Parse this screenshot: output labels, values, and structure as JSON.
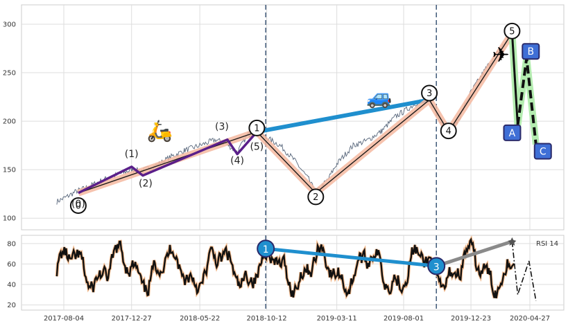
{
  "chart_data": [
    {
      "type": "line",
      "panel": "price",
      "title": "",
      "xlabel": "",
      "ylabel": "",
      "x_ticks": [
        "2017-08-04",
        "2017-12-27",
        "2018-05-22",
        "2018-10-12",
        "2019-03-11",
        "2019-08-01",
        "2019-12-23",
        "2020-04-27"
      ],
      "y_ticks": [
        100,
        150,
        200,
        250,
        300
      ],
      "ylim": [
        88,
        320
      ],
      "grid": true,
      "price_path": [
        [
          "2017-07-20",
          117
        ],
        [
          "2017-08-10",
          122
        ],
        [
          "2017-09-01",
          128
        ],
        [
          "2017-09-25",
          132
        ],
        [
          "2017-10-20",
          138
        ],
        [
          "2017-11-15",
          143
        ],
        [
          "2017-12-10",
          147
        ],
        [
          "2017-12-27",
          150
        ],
        [
          "2018-01-20",
          149
        ],
        [
          "2018-02-20",
          155
        ],
        [
          "2018-03-20",
          163
        ],
        [
          "2018-04-20",
          170
        ],
        [
          "2018-05-22",
          175
        ],
        [
          "2018-06-25",
          181
        ],
        [
          "2018-07-20",
          176
        ],
        [
          "2018-08-10",
          168
        ],
        [
          "2018-09-01",
          186
        ],
        [
          "2018-09-21",
          189
        ],
        [
          "2018-10-12",
          183
        ],
        [
          "2018-11-10",
          175
        ],
        [
          "2018-12-10",
          160
        ],
        [
          "2019-01-10",
          140
        ],
        [
          "2019-01-25",
          126
        ],
        [
          "2019-02-20",
          140
        ],
        [
          "2019-03-11",
          156
        ],
        [
          "2019-04-15",
          175
        ],
        [
          "2019-05-15",
          180
        ],
        [
          "2019-06-15",
          190
        ],
        [
          "2019-07-15",
          205
        ],
        [
          "2019-08-01",
          210
        ],
        [
          "2019-09-01",
          220
        ],
        [
          "2019-09-25",
          222
        ],
        [
          "2019-10-20",
          200
        ],
        [
          "2019-11-05",
          189
        ],
        [
          "2019-11-25",
          200
        ],
        [
          "2019-12-23",
          230
        ],
        [
          "2020-01-25",
          255
        ],
        [
          "2020-02-25",
          275
        ],
        [
          "2020-03-20",
          291
        ]
      ],
      "wave_main": [
        {
          "label": "0",
          "x": "2017-09-04",
          "y": 126,
          "circle_y": 113
        },
        {
          "label": "1",
          "x": "2018-09-21",
          "y": 189,
          "circle_y": 193
        },
        {
          "label": "2",
          "x": "2019-01-25",
          "y": 126,
          "circle_y": 122
        },
        {
          "label": "3",
          "x": "2019-09-25",
          "y": 222,
          "circle_y": 229
        },
        {
          "label": "4",
          "x": "2019-11-05",
          "y": 189,
          "circle_y": 190
        },
        {
          "label": "5",
          "x": "2020-03-20",
          "y": 291,
          "circle_y": 293
        }
      ],
      "wave_sub": [
        {
          "label": "(0)",
          "x": "2017-09-04",
          "y": 126
        },
        {
          "label": "(1)",
          "x": "2017-12-27",
          "y": 153
        },
        {
          "label": "(2)",
          "x": "2018-01-20",
          "y": 144
        },
        {
          "label": "(3)",
          "x": "2018-07-20",
          "y": 181
        },
        {
          "label": "(4)",
          "x": "2018-08-10",
          "y": 166
        },
        {
          "label": "(5)",
          "x": "2018-09-21",
          "y": 189
        }
      ],
      "wave_correction": [
        {
          "label": "A",
          "x": "2020-04-01",
          "y": 196,
          "box_y": 188
        },
        {
          "label": "B",
          "x": "2020-04-20",
          "y": 265,
          "box_y": 272
        },
        {
          "label": "C",
          "x": "2020-05-10",
          "y": 176,
          "box_y": 169
        }
      ],
      "trend_line_blue": [
        [
          "2018-09-21",
          189
        ],
        [
          "2019-09-25",
          222
        ]
      ],
      "vlines": [
        "2018-10-10",
        "2019-10-10"
      ],
      "icons": [
        {
          "name": "scooter-icon",
          "glyph": "🛵",
          "x": "2018-02-25",
          "y": 183
        },
        {
          "name": "car-icon",
          "glyph": "🚙",
          "x": "2019-06-10",
          "y": 218
        },
        {
          "name": "airplane-icon",
          "glyph": "✈",
          "x": "2020-02-25",
          "y": 261
        }
      ]
    },
    {
      "type": "line",
      "panel": "rsi",
      "series_label": "RSI 14",
      "y_ticks": [
        20,
        40,
        60,
        80
      ],
      "ylim": [
        15,
        88
      ],
      "grid": true,
      "markers": [
        {
          "label": "1",
          "x": "2018-10-10",
          "y": 75
        },
        {
          "label": "3",
          "x": "2019-10-10",
          "y": 58
        }
      ],
      "trend_line_blue": [
        [
          "2018-10-10",
          75
        ],
        [
          "2019-10-10",
          58
        ]
      ],
      "trend_line_gray": [
        [
          "2019-10-10",
          58
        ],
        [
          "2020-03-20",
          82
        ]
      ],
      "forecast": [
        [
          "2020-04-01",
          30
        ],
        [
          "2020-04-25",
          63
        ],
        [
          "2020-05-10",
          24
        ]
      ]
    }
  ]
}
